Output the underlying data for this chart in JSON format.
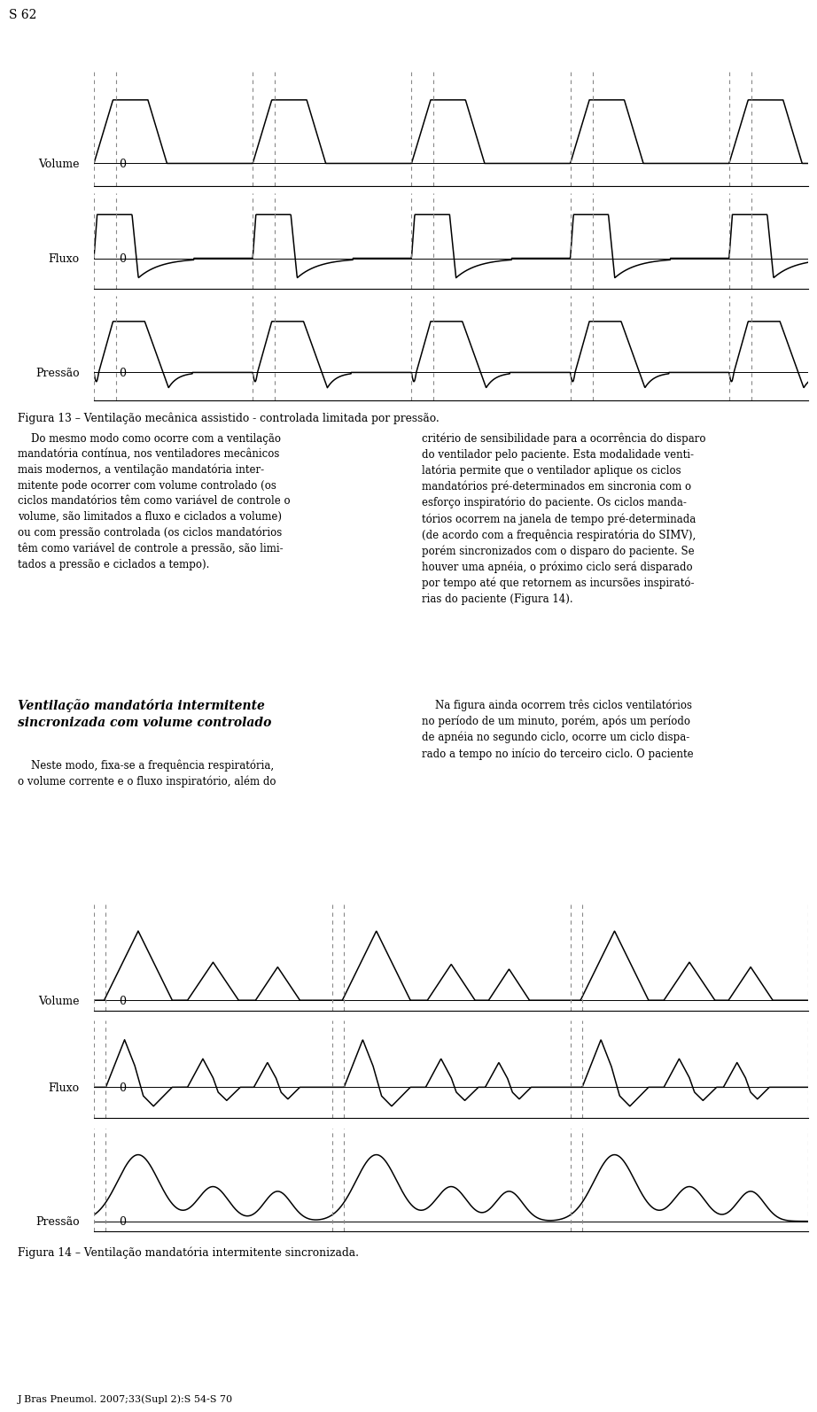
{
  "page_label": "S 62",
  "fig13_title": "Figura 13 – Ventilação mecânica assistido - controlada limitada por pressão.",
  "fig14_title": "Figura 14 – Ventilação mandatória intermitente sincronizada.",
  "journal_label": "J Bras Pneumol. 2007;33(Supl 2):S 54-S 70",
  "line_color": "#000000",
  "dashed_color": "#888888",
  "bg_color": "#ffffff"
}
